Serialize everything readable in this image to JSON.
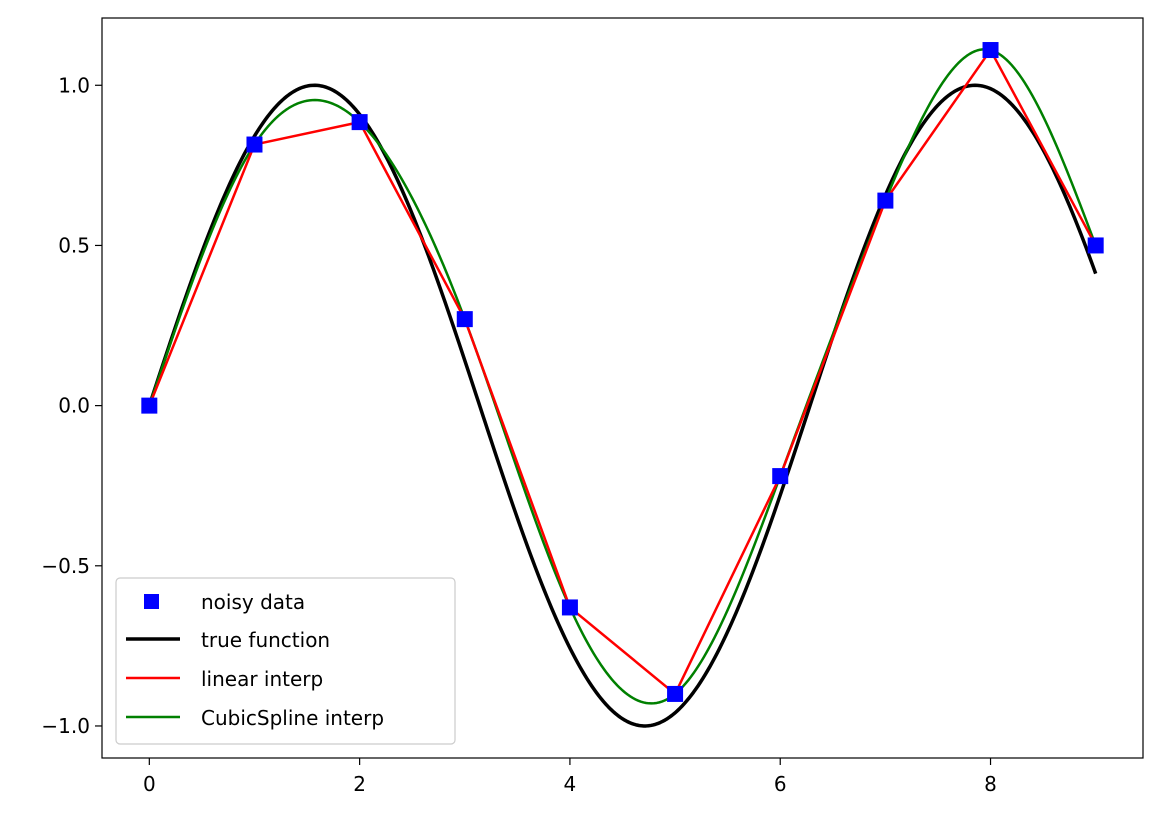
{
  "chart_data": {
    "type": "line",
    "title": "",
    "xlabel": "",
    "ylabel": "",
    "xlim": [
      -0.45,
      9.45
    ],
    "ylim": [
      -1.1,
      1.21
    ],
    "grid": false,
    "legend_position": "lower-left",
    "x_ticks": [
      0,
      2,
      4,
      6,
      8
    ],
    "x_tick_labels": [
      "0",
      "2",
      "4",
      "6",
      "8"
    ],
    "y_ticks": [
      -1.0,
      -0.5,
      0.0,
      0.5,
      1.0
    ],
    "y_tick_labels": [
      "−1.0",
      "−0.5",
      "0.0",
      "0.5",
      "1.0"
    ],
    "noisy_data": {
      "name": "noisy data",
      "color": "#0000ff",
      "marker": "square",
      "x": [
        0,
        1,
        2,
        3,
        4,
        5,
        6,
        7,
        8,
        9
      ],
      "y": [
        0.0,
        0.815,
        0.885,
        0.27,
        -0.63,
        -0.9,
        -0.22,
        0.64,
        1.11,
        0.5
      ]
    },
    "true_function": {
      "name": "true function",
      "color": "#000000",
      "function": "sin(x)",
      "x_range": [
        0,
        9
      ]
    },
    "linear_interp": {
      "name": "linear interp",
      "color": "#ff0000",
      "method": "linear"
    },
    "cubic_spline_interp": {
      "name": "CubicSpline interp",
      "color": "#008000",
      "method": "natural cubic spline"
    },
    "legend": [
      "noisy data",
      "true function",
      "linear interp",
      "CubicSpline interp"
    ]
  }
}
